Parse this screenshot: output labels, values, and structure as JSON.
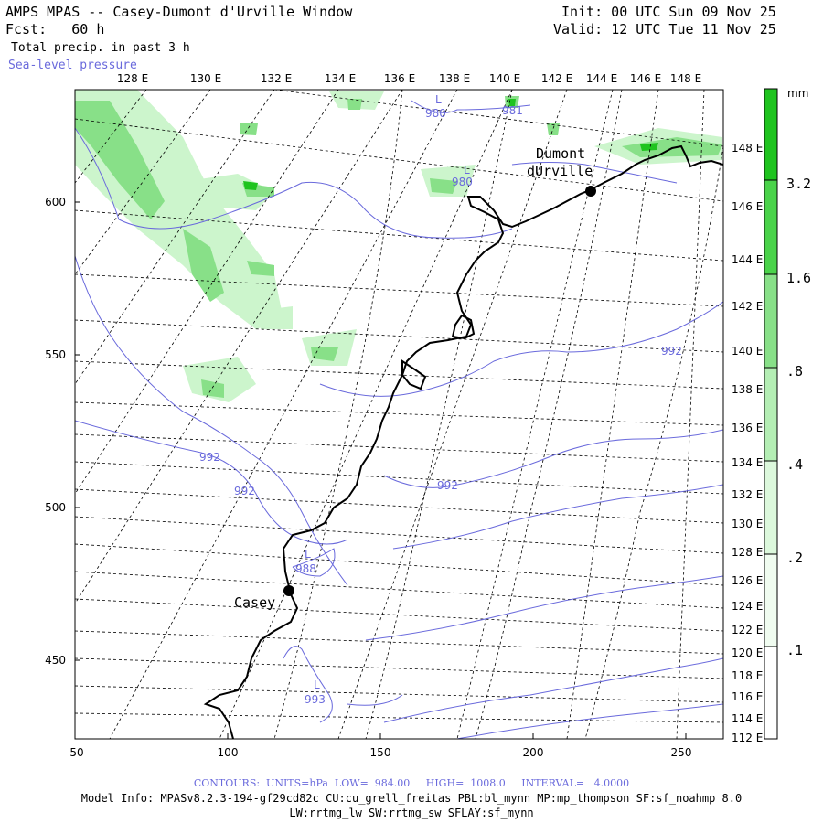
{
  "header": {
    "title": "AMPS MPAS -- Casey-Dumont d'Urville Window",
    "fcst": "Fcst:   60 h",
    "field1": "Total precip. in past 3 h",
    "field2": "Sea-level pressure",
    "init": "Init: 00 UTC Sun 09 Nov 25",
    "valid": "Valid: 12 UTC Tue 11 Nov 25"
  },
  "colors": {
    "slp": "#6a6adc",
    "precip_light": "#ccf5cc",
    "precip_mid": "#88e088",
    "precip_dark": "#1fc41f",
    "coast": "#000000",
    "grid": "#000000"
  },
  "map": {
    "x_ticks": [
      "50",
      "100",
      "150",
      "200",
      "250"
    ],
    "y_ticks": [
      "600",
      "550",
      "500",
      "450"
    ],
    "top_lon_labels": [
      "128 E",
      "130 E",
      "132 E",
      "134 E",
      "136 E",
      "138 E",
      "140 E",
      "142 E",
      "144 E",
      "146 E",
      "148 E"
    ],
    "right_lat_labels": [
      "148 E",
      "146 E",
      "144 E",
      "142 E",
      "140 E",
      "138 E",
      "136 E",
      "134 E",
      "132 E",
      "130 E",
      "128 E",
      "126 E",
      "124 E",
      "122 E",
      "120 E",
      "118 E",
      "116 E",
      "114 E",
      "112 E"
    ],
    "stations": [
      {
        "name_line1": "Dumont",
        "name_line2": "dUrville"
      },
      {
        "name_line1": "Casey",
        "name_line2": ""
      }
    ],
    "pressure_labels": [
      "980",
      "980",
      "981",
      "992",
      "992",
      "992",
      "992",
      "988",
      "993"
    ],
    "low_marks": [
      "L",
      "L",
      "L",
      "L"
    ]
  },
  "colorbar": {
    "unit": "mm",
    "levels": [
      "3.2",
      "1.6",
      ".8",
      ".4",
      ".2",
      ".1"
    ]
  },
  "footer": {
    "contours": "CONTOURS:  UNITS=hPa  LOW=  984.00     HIGH=  1008.0     INTERVAL=   4.0000",
    "model_info": "Model Info: MPASv8.2.3-194-gf29cd82c CU:cu_grell_freitas PBL:bl_mynn MP:mp_thompson SF:sf_noahmp 8.0",
    "model_info2": "LW:rrtmg_lw SW:rrtmg_sw SFLAY:sf_mynn"
  }
}
